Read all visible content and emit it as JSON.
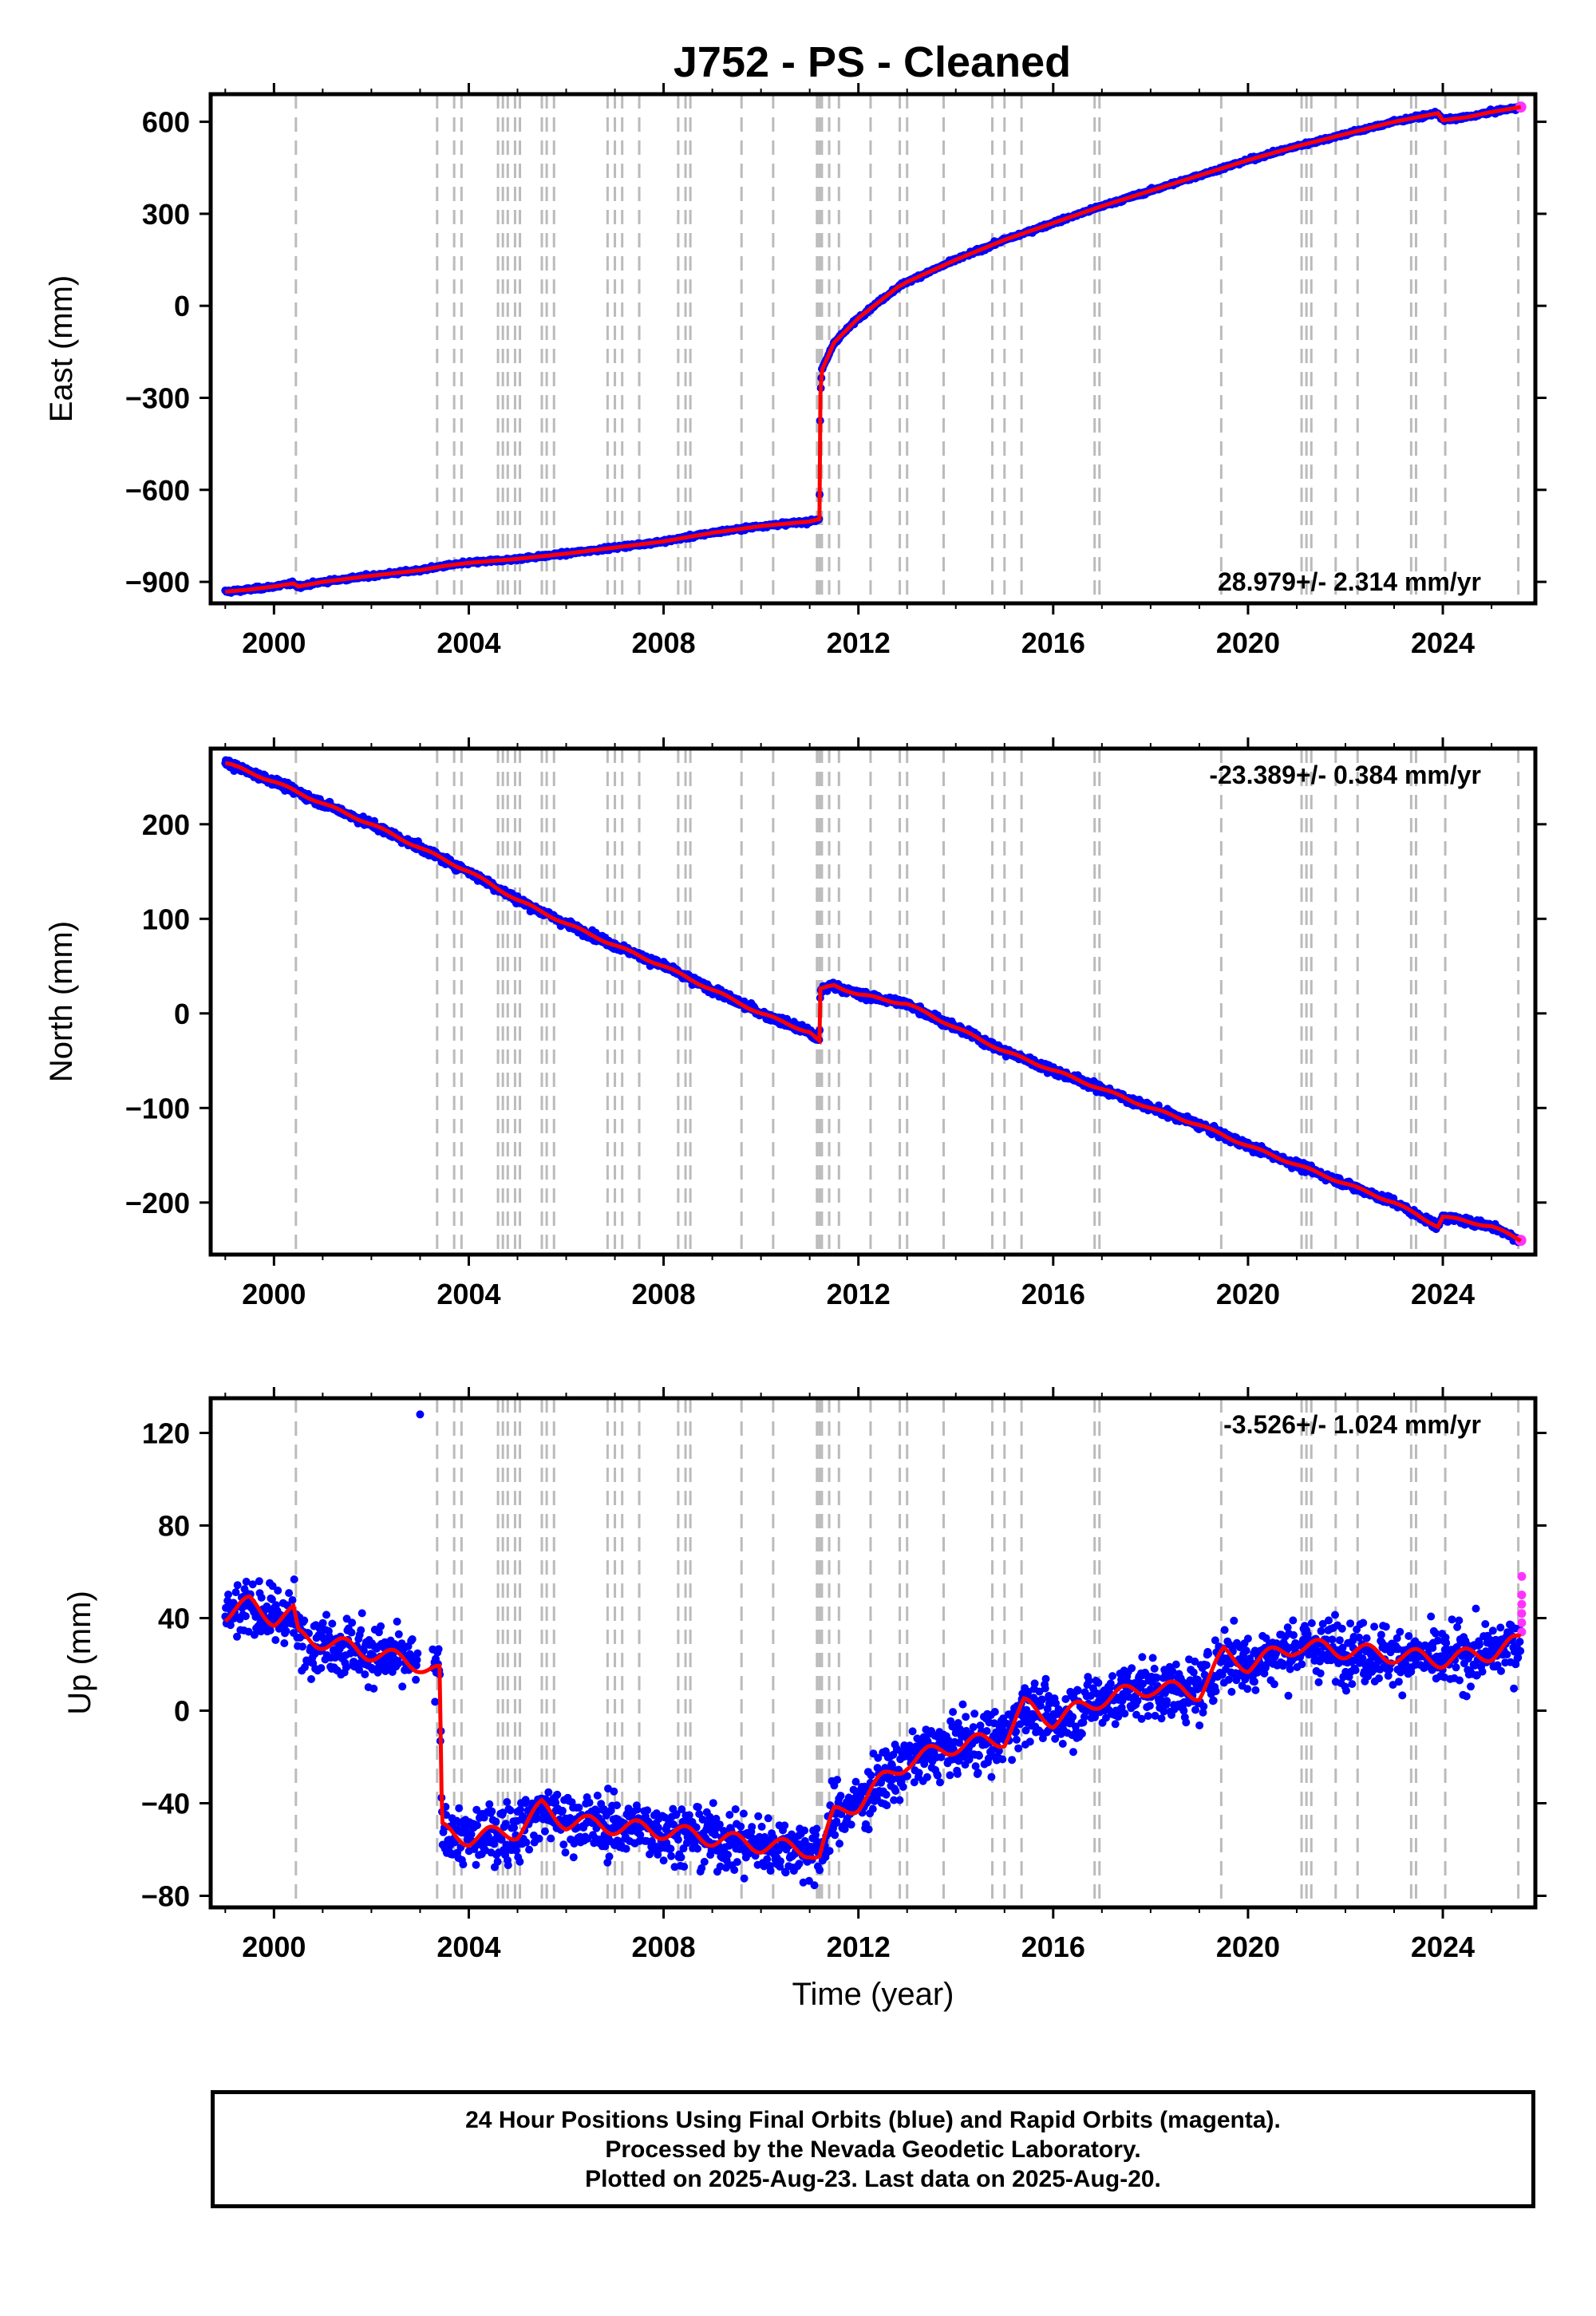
{
  "chart_data": [
    {
      "type": "scatter",
      "title": "J752  - PS - Cleaned",
      "xlabel": "",
      "ylabel": "East (mm)",
      "xlim": [
        1998.7,
        2025.9
      ],
      "ylim": [
        -970,
        690
      ],
      "xticks": [
        2000,
        2004,
        2008,
        2012,
        2016,
        2020,
        2024
      ],
      "yticks": [
        -900,
        -600,
        -300,
        0,
        300,
        600
      ],
      "rate_label": "28.979+/- 2.314 mm/yr",
      "grid": false,
      "series": [
        {
          "color": "#0000ff",
          "x": [
            1999.0,
            1999.5,
            2000.0,
            2000.4,
            2000.5,
            2001.0,
            2002.0,
            2003.0,
            2003.5,
            2004.0,
            2005.0,
            2006.0,
            2007.0,
            2008.0,
            2009.0,
            2010.0,
            2011.0,
            2011.2,
            2011.22,
            2011.25,
            2011.5,
            2012.0,
            2012.8,
            2013.0,
            2014.0,
            2015.0,
            2016.0,
            2017.0,
            2018.0,
            2019.0,
            2020.0,
            2021.0,
            2022.0,
            2023.0,
            2023.9,
            2024.0,
            2024.5,
            2025.0,
            2025.6
          ],
          "y": [
            -932,
            -925,
            -915,
            -905,
            -915,
            -900,
            -880,
            -862,
            -848,
            -838,
            -825,
            -808,
            -788,
            -768,
            -740,
            -718,
            -703,
            -695,
            -290,
            -210,
            -120,
            -40,
            60,
            78,
            150,
            215,
            270,
            325,
            375,
            425,
            475,
            520,
            560,
            600,
            628,
            605,
            615,
            632,
            648
          ]
        }
      ]
    },
    {
      "type": "scatter",
      "title": "",
      "xlabel": "",
      "ylabel": "North (mm)",
      "xlim": [
        1998.7,
        2025.9
      ],
      "ylim": [
        -255,
        280
      ],
      "xticks": [
        2000,
        2004,
        2008,
        2012,
        2016,
        2020,
        2024
      ],
      "yticks": [
        -200,
        -100,
        0,
        100,
        200
      ],
      "rate_label": "-23.389+/- 0.384 mm/yr",
      "grid": false,
      "series": [
        {
          "color": "#0000ff",
          "x": [
            1999.0,
            2000.0,
            2001.0,
            2002.0,
            2003.0,
            2004.0,
            2005.0,
            2006.0,
            2007.0,
            2008.0,
            2009.0,
            2010.0,
            2011.0,
            2011.2,
            2011.22,
            2011.5,
            2012.0,
            2013.0,
            2014.0,
            2015.0,
            2016.0,
            2017.0,
            2018.0,
            2019.0,
            2020.0,
            2021.0,
            2022.0,
            2023.0,
            2023.9,
            2024.0,
            2025.0,
            2025.6
          ],
          "y": [
            265,
            245,
            222,
            200,
            175,
            150,
            120,
            95,
            72,
            50,
            25,
            0,
            -20,
            -30,
            25,
            30,
            20,
            10,
            -15,
            -40,
            -60,
            -80,
            -100,
            -118,
            -140,
            -160,
            -180,
            -200,
            -225,
            -215,
            -225,
            -240
          ]
        }
      ]
    },
    {
      "type": "scatter",
      "title": "",
      "xlabel": "Time (year)",
      "ylabel": "Up (mm)",
      "xlim": [
        1998.7,
        2025.9
      ],
      "ylim": [
        -85,
        135
      ],
      "xticks": [
        2000,
        2004,
        2008,
        2012,
        2016,
        2020,
        2024
      ],
      "yticks": [
        -80,
        -40,
        0,
        40,
        80,
        120
      ],
      "rate_label": "-3.526+/- 1.024 mm/yr",
      "grid": false,
      "series": [
        {
          "color": "#0000ff",
          "x": [
            1999.0,
            1999.5,
            2000.0,
            2000.4,
            2000.5,
            2001.0,
            2002.0,
            2003.0,
            2003.4,
            2003.45,
            2004.0,
            2005.0,
            2005.5,
            2006.0,
            2007.0,
            2008.0,
            2009.0,
            2010.0,
            2011.0,
            2011.2,
            2011.5,
            2012.0,
            2012.5,
            2013.0,
            2014.0,
            2015.0,
            2015.4,
            2016.0,
            2017.0,
            2018.0,
            2019.0,
            2019.5,
            2020.0,
            2021.0,
            2022.0,
            2023.0,
            2024.0,
            2025.0,
            2025.6
          ],
          "y": [
            42,
            46,
            40,
            42,
            32,
            30,
            25,
            20,
            16,
            -52,
            -55,
            -52,
            -42,
            -48,
            -50,
            -52,
            -55,
            -58,
            -60,
            -63,
            -45,
            -40,
            -30,
            -22,
            -15,
            -12,
            2,
            -4,
            5,
            10,
            8,
            24,
            20,
            28,
            26,
            24,
            22,
            25,
            30
          ]
        }
      ],
      "outliers": [
        {
          "x": 2003.0,
          "y": 128
        }
      ]
    }
  ],
  "event_lines_year": [
    2000.45,
    2003.35,
    2003.7,
    2003.85,
    2004.6,
    2004.7,
    2004.8,
    2004.95,
    2005.05,
    2005.5,
    2005.6,
    2005.75,
    2006.85,
    2007.0,
    2007.15,
    2007.5,
    2008.3,
    2008.45,
    2008.55,
    2009.6,
    2010.25,
    2011.15,
    2011.2,
    2011.25,
    2011.4,
    2011.6,
    2012.25,
    2012.85,
    2013.0,
    2013.75,
    2014.75,
    2015.0,
    2015.35,
    2016.85,
    2016.95,
    2019.45,
    2021.1,
    2021.2,
    2021.3,
    2021.8,
    2022.25,
    2023.35,
    2023.45,
    2024.05,
    2025.55
  ],
  "colors": {
    "final_orbits": "#0000ff",
    "rapid_orbits": "#ff33ff",
    "model": "#ff0000",
    "event_line": "#bbbbbb"
  },
  "rapid_points_up": [
    58,
    50,
    46,
    42,
    38,
    34
  ],
  "footer": {
    "line1": "24 Hour Positions Using Final Orbits (blue) and Rapid Orbits (magenta).",
    "line2": "Processed by the Nevada Geodetic Laboratory.",
    "line3": "Plotted on 2025-Aug-23. Last data on 2025-Aug-20."
  }
}
